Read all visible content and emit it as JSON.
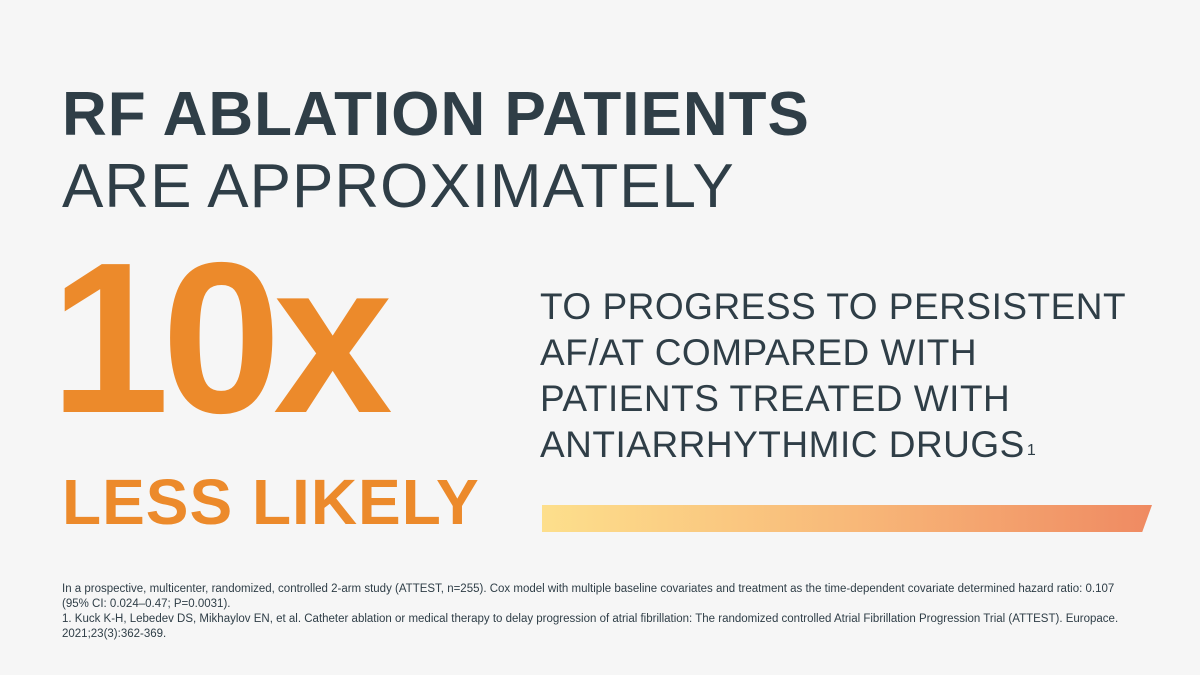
{
  "headline": {
    "line1": "RF ABLATION PATIENTS",
    "line2": "ARE APPROXIMATELY"
  },
  "stat": {
    "number": "10x",
    "qualifier": "LESS LIKELY"
  },
  "statement": {
    "lines": [
      "TO PROGRESS TO PERSISTENT",
      "AF/AT COMPARED WITH",
      "PATIENTS TREATED WITH",
      "ANTIARRHYTHMIC DRUGS"
    ],
    "superscript": "1"
  },
  "colors": {
    "background": "#f6f6f6",
    "text_dark": "#2f3e47",
    "accent_orange": "#ec8a2b",
    "gradient_start": "#fddf8c",
    "gradient_end": "#ef8a62"
  },
  "footnotes": {
    "study": "In a prospective, multicenter, randomized, controlled 2-arm study (ATTEST, n=255). Cox model with multiple baseline covariates and treatment as the time-dependent covariate determined hazard ratio: 0.107 (95% CI: 0.024–0.47; P=0.0031).",
    "reference": "1. Kuck K-H, Lebedev DS, Mikhaylov EN, et al. Catheter ablation or medical therapy to delay progression of atrial fibrillation: The randomized controlled Atrial Fibrillation Progression Trial (ATTEST). Europace. 2021;23(3):362-369."
  }
}
